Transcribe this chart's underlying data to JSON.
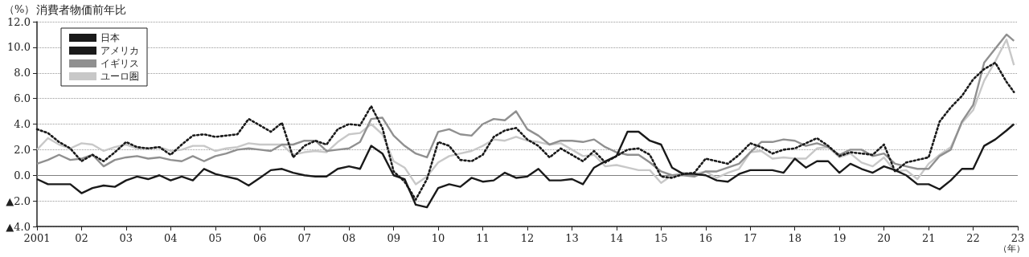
{
  "chart_data": {
    "type": "line",
    "title": "消費者物価前年比",
    "ylabel": "（%）",
    "xlabel": "（年）",
    "x": [
      "2001-01",
      "2001-04",
      "2001-07",
      "2001-10",
      "2002-01",
      "2002-04",
      "2002-07",
      "2002-10",
      "2003-01",
      "2003-04",
      "2003-07",
      "2003-10",
      "2004-01",
      "2004-04",
      "2004-07",
      "2004-10",
      "2005-01",
      "2005-04",
      "2005-07",
      "2005-10",
      "2006-01",
      "2006-04",
      "2006-07",
      "2006-10",
      "2007-01",
      "2007-04",
      "2007-07",
      "2007-10",
      "2008-01",
      "2008-04",
      "2008-07",
      "2008-10",
      "2009-01",
      "2009-04",
      "2009-07",
      "2009-10",
      "2010-01",
      "2010-04",
      "2010-07",
      "2010-10",
      "2011-01",
      "2011-04",
      "2011-07",
      "2011-10",
      "2012-01",
      "2012-04",
      "2012-07",
      "2012-10",
      "2013-01",
      "2013-04",
      "2013-07",
      "2013-10",
      "2014-01",
      "2014-04",
      "2014-07",
      "2014-10",
      "2015-01",
      "2015-04",
      "2015-07",
      "2015-10",
      "2016-01",
      "2016-04",
      "2016-07",
      "2016-10",
      "2017-01",
      "2017-04",
      "2017-07",
      "2017-10",
      "2018-01",
      "2018-04",
      "2018-07",
      "2018-10",
      "2019-01",
      "2019-04",
      "2019-07",
      "2019-10",
      "2020-01",
      "2020-04",
      "2020-07",
      "2020-10",
      "2021-01",
      "2021-04",
      "2021-07",
      "2021-10",
      "2022-01",
      "2022-04",
      "2022-07",
      "2022-10",
      "2022-12"
    ],
    "series": [
      {
        "name": "日本",
        "color": "#1a1a1a",
        "line_style": "solid",
        "values": [
          -0.3,
          -0.7,
          -0.7,
          -0.7,
          -1.4,
          -1.0,
          -0.8,
          -0.9,
          -0.4,
          -0.1,
          -0.3,
          0.0,
          -0.4,
          -0.1,
          -0.4,
          0.5,
          0.1,
          -0.1,
          -0.3,
          -0.8,
          -0.2,
          0.4,
          0.5,
          0.2,
          0.0,
          -0.1,
          -0.1,
          0.5,
          0.7,
          0.5,
          2.3,
          1.7,
          0.0,
          -0.3,
          -2.3,
          -2.5,
          -1.0,
          -0.7,
          -0.9,
          -0.2,
          -0.5,
          -0.4,
          0.2,
          -0.2,
          -0.1,
          0.5,
          -0.4,
          -0.4,
          -0.3,
          -0.7,
          0.6,
          1.1,
          1.5,
          3.4,
          3.4,
          2.7,
          2.4,
          0.6,
          0.1,
          0.1,
          0.0,
          -0.4,
          -0.5,
          0.1,
          0.4,
          0.4,
          0.4,
          0.2,
          1.3,
          0.6,
          1.1,
          1.1,
          0.2,
          0.9,
          0.5,
          0.2,
          0.7,
          0.4,
          0.0,
          -0.7,
          -0.7,
          -1.1,
          -0.4,
          0.5,
          0.5,
          2.3,
          2.8,
          3.5,
          4.0
        ]
      },
      {
        "name": "アメリカ",
        "color": "#1a1a1a",
        "line_style": "dotted",
        "values": [
          3.6,
          3.3,
          2.6,
          2.1,
          1.1,
          1.6,
          1.1,
          1.8,
          2.6,
          2.2,
          2.1,
          2.2,
          1.6,
          2.4,
          3.1,
          3.2,
          3.0,
          3.1,
          3.2,
          4.4,
          3.9,
          3.4,
          4.1,
          1.4,
          2.3,
          2.7,
          2.4,
          3.6,
          4.0,
          3.9,
          5.4,
          3.7,
          0.3,
          -0.5,
          -1.9,
          -0.3,
          2.6,
          2.3,
          1.2,
          1.1,
          1.6,
          3.0,
          3.5,
          3.7,
          2.8,
          2.3,
          1.4,
          2.1,
          1.6,
          1.1,
          1.9,
          1.0,
          1.5,
          2.0,
          2.1,
          1.6,
          -0.1,
          -0.2,
          0.1,
          0.2,
          1.3,
          1.1,
          0.9,
          1.6,
          2.5,
          2.2,
          1.7,
          2.0,
          2.1,
          2.5,
          2.9,
          2.3,
          1.5,
          1.8,
          1.7,
          1.6,
          2.4,
          0.3,
          1.0,
          1.2,
          1.4,
          4.2,
          5.3,
          6.2,
          7.5,
          8.3,
          8.8,
          7.3,
          6.5
        ]
      },
      {
        "name": "イギリス",
        "color": "#909090",
        "line_style": "solid",
        "values": [
          0.9,
          1.2,
          1.6,
          1.2,
          1.3,
          1.6,
          0.7,
          1.2,
          1.4,
          1.5,
          1.3,
          1.4,
          1.2,
          1.1,
          1.5,
          1.1,
          1.5,
          1.7,
          2.0,
          2.1,
          2.0,
          1.9,
          2.4,
          2.4,
          2.7,
          2.7,
          1.9,
          2.0,
          2.1,
          2.6,
          4.4,
          4.5,
          3.1,
          2.3,
          1.7,
          1.4,
          3.4,
          3.6,
          3.2,
          3.1,
          4.0,
          4.4,
          4.3,
          5.0,
          3.6,
          3.1,
          2.4,
          2.7,
          2.7,
          2.6,
          2.8,
          2.2,
          1.8,
          1.6,
          1.6,
          1.0,
          0.3,
          0.0,
          0.0,
          -0.1,
          0.3,
          0.3,
          0.6,
          0.9,
          1.8,
          2.6,
          2.6,
          2.8,
          2.7,
          2.3,
          2.5,
          2.2,
          1.6,
          2.0,
          2.0,
          1.5,
          1.7,
          0.9,
          0.7,
          0.5,
          0.5,
          1.5,
          2.0,
          4.2,
          5.5,
          8.8,
          9.9,
          11.0,
          10.5
        ]
      },
      {
        "name": "ユーロ圏",
        "color": "#c8c8c8",
        "line_style": "solid",
        "values": [
          2.0,
          2.9,
          2.4,
          2.1,
          2.5,
          2.4,
          1.9,
          2.2,
          2.4,
          2.1,
          2.1,
          2.2,
          1.9,
          2.0,
          2.3,
          2.3,
          1.9,
          2.1,
          2.2,
          2.5,
          2.4,
          2.4,
          2.4,
          1.6,
          1.8,
          1.9,
          1.8,
          2.6,
          3.2,
          3.3,
          4.0,
          3.2,
          1.1,
          0.6,
          -0.7,
          -0.1,
          1.0,
          1.5,
          1.7,
          1.9,
          2.3,
          2.8,
          2.7,
          3.0,
          2.7,
          2.6,
          2.4,
          2.5,
          2.0,
          1.5,
          1.6,
          0.7,
          0.8,
          0.6,
          0.4,
          0.4,
          -0.6,
          0.0,
          0.2,
          0.1,
          0.3,
          -0.2,
          0.2,
          0.5,
          1.8,
          1.9,
          1.3,
          1.4,
          1.3,
          1.3,
          2.1,
          2.2,
          1.4,
          1.7,
          1.0,
          0.7,
          1.4,
          0.3,
          0.4,
          -0.3,
          0.9,
          1.6,
          2.2,
          4.1,
          5.1,
          7.4,
          8.9,
          10.6,
          8.6
        ]
      }
    ],
    "xlim": [
      "2001-01",
      "2023-01"
    ],
    "xticks": [
      {
        "value": "2001-01",
        "label": "2001"
      },
      {
        "value": "2002-01",
        "label": "02"
      },
      {
        "value": "2003-01",
        "label": "03"
      },
      {
        "value": "2004-01",
        "label": "04"
      },
      {
        "value": "2005-01",
        "label": "05"
      },
      {
        "value": "2006-01",
        "label": "06"
      },
      {
        "value": "2007-01",
        "label": "07"
      },
      {
        "value": "2008-01",
        "label": "08"
      },
      {
        "value": "2009-01",
        "label": "09"
      },
      {
        "value": "2010-01",
        "label": "10"
      },
      {
        "value": "2011-01",
        "label": "11"
      },
      {
        "value": "2012-01",
        "label": "12"
      },
      {
        "value": "2013-01",
        "label": "13"
      },
      {
        "value": "2014-01",
        "label": "14"
      },
      {
        "value": "2015-01",
        "label": "15"
      },
      {
        "value": "2016-01",
        "label": "16"
      },
      {
        "value": "2017-01",
        "label": "17"
      },
      {
        "value": "2018-01",
        "label": "18"
      },
      {
        "value": "2019-01",
        "label": "19"
      },
      {
        "value": "2020-01",
        "label": "20"
      },
      {
        "value": "2021-01",
        "label": "21"
      },
      {
        "value": "2022-01",
        "label": "22"
      },
      {
        "value": "2023-01",
        "label": "23"
      }
    ],
    "ylim": [
      -4,
      12
    ],
    "yticks": [
      {
        "value": -4,
        "label": "▲4.0"
      },
      {
        "value": -2,
        "label": "▲2.0"
      },
      {
        "value": 0,
        "label": "0.0"
      },
      {
        "value": 2,
        "label": "2.0"
      },
      {
        "value": 4,
        "label": "4.0"
      },
      {
        "value": 6,
        "label": "6.0"
      },
      {
        "value": 8,
        "label": "8.0"
      },
      {
        "value": 10,
        "label": "10.0"
      },
      {
        "value": 12,
        "label": "12.0"
      }
    ],
    "ref_lines": [
      {
        "axis": "y",
        "value": 0,
        "color": "#808080"
      }
    ],
    "grid": "y",
    "legend": "top left",
    "marker": "none"
  }
}
